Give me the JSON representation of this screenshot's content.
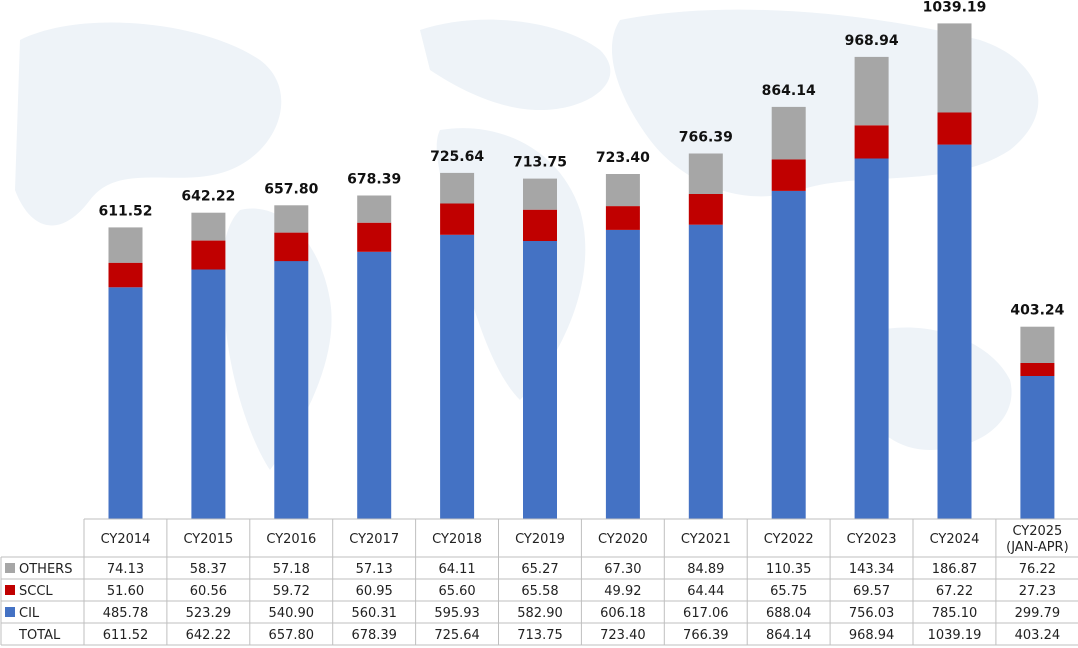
{
  "chart_data": {
    "type": "bar",
    "stacked": true,
    "categories": [
      "CY2014",
      "CY2015",
      "CY2016",
      "CY2017",
      "CY2018",
      "CY2019",
      "CY2020",
      "CY2021",
      "CY2022",
      "CY2023",
      "CY2024",
      "CY2025\n(JAN-APR)"
    ],
    "series": [
      {
        "name": "CIL",
        "color": "#4472C4",
        "values": [
          485.78,
          523.29,
          540.9,
          560.31,
          595.93,
          582.9,
          606.18,
          617.06,
          688.04,
          756.03,
          785.1,
          299.79
        ]
      },
      {
        "name": "SCCL",
        "color": "#C00000",
        "values": [
          51.6,
          60.56,
          59.72,
          60.95,
          65.6,
          65.58,
          49.92,
          64.44,
          65.75,
          69.57,
          67.22,
          27.23
        ]
      },
      {
        "name": "OTHERS",
        "color": "#A6A6A6",
        "values": [
          74.13,
          58.37,
          57.18,
          57.13,
          64.11,
          65.27,
          67.3,
          84.89,
          110.35,
          143.34,
          186.87,
          76.22
        ]
      }
    ],
    "totals": [
      611.52,
      642.22,
      657.8,
      678.39,
      725.64,
      713.75,
      723.4,
      766.39,
      864.14,
      968.94,
      1039.19,
      403.24
    ],
    "total_labels": [
      "611.52",
      "642.22",
      "657.80",
      "678.39",
      "725.64",
      "713.75",
      "723.40",
      "766.39",
      "864.14",
      "968.94",
      "1039.19",
      "403.24"
    ],
    "table": {
      "rows": [
        {
          "label": "OTHERS",
          "color": "#A6A6A6",
          "cells": [
            "74.13",
            "58.37",
            "57.18",
            "57.13",
            "64.11",
            "65.27",
            "67.30",
            "84.89",
            "110.35",
            "143.34",
            "186.87",
            "76.22"
          ]
        },
        {
          "label": "SCCL",
          "color": "#C00000",
          "cells": [
            "51.60",
            "60.56",
            "59.72",
            "60.95",
            "65.60",
            "65.58",
            "49.92",
            "64.44",
            "65.75",
            "69.57",
            "67.22",
            "27.23"
          ]
        },
        {
          "label": "CIL",
          "color": "#4472C4",
          "cells": [
            "485.78",
            "523.29",
            "540.90",
            "560.31",
            "595.93",
            "582.90",
            "606.18",
            "617.06",
            "688.04",
            "756.03",
            "785.10",
            "299.79"
          ]
        },
        {
          "label": "TOTAL",
          "color": "",
          "cells": [
            "611.52",
            "642.22",
            "657.80",
            "678.39",
            "725.64",
            "713.75",
            "723.40",
            "766.39",
            "864.14",
            "968.94",
            "1039.19",
            "403.24"
          ]
        }
      ]
    },
    "ylim": [
      0,
      1075
    ],
    "grid": false,
    "legend": "table-left",
    "title": "",
    "xlabel": "",
    "ylabel": ""
  }
}
